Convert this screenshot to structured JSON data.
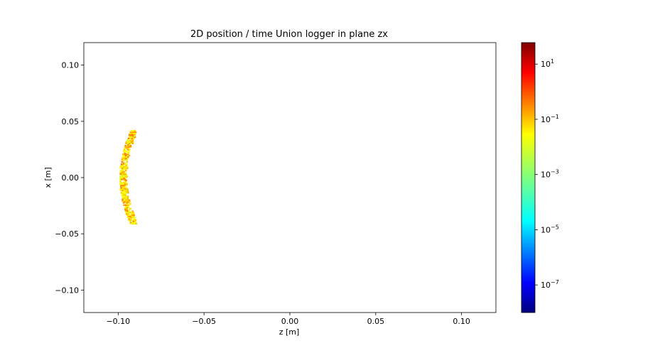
{
  "chart_data": {
    "type": "heatmap",
    "title": "2D position / time Union logger in plane zx",
    "xlabel": "z [m]",
    "ylabel": "x [m]",
    "xlim": [
      -0.12,
      0.12
    ],
    "ylim": [
      -0.12,
      0.12
    ],
    "x_ticks": [
      -0.1,
      -0.05,
      0.0,
      0.05,
      0.1
    ],
    "x_tick_labels": [
      "−0.10",
      "−0.05",
      "0.00",
      "0.05",
      "0.10"
    ],
    "y_ticks": [
      0.1,
      0.05,
      0.0,
      -0.05,
      -0.1
    ],
    "y_tick_labels": [
      "0.10",
      "0.05",
      "0.00",
      "−0.05",
      "−0.10"
    ],
    "grid": false,
    "colormap": "jet",
    "color_scale": "log",
    "colorbar_range": [
      1e-08,
      60
    ],
    "colorbar_ticks": [
      {
        "value": 10,
        "base": "10",
        "exp": "1"
      },
      {
        "value": 0.1,
        "base": "10",
        "exp": "−1"
      },
      {
        "value": 0.001,
        "base": "10",
        "exp": "−3"
      },
      {
        "value": 1e-05,
        "base": "10",
        "exp": "−5"
      },
      {
        "value": 1e-07,
        "base": "10",
        "exp": "−7"
      }
    ],
    "arc": {
      "description_points": [
        {
          "z": -0.0895,
          "x": 0.042
        },
        {
          "z": -0.0925,
          "x": 0.03
        },
        {
          "z": -0.0955,
          "x": 0.015
        },
        {
          "z": -0.0968,
          "x": 0.0
        },
        {
          "z": -0.0955,
          "x": -0.015
        },
        {
          "z": -0.0925,
          "x": -0.03
        },
        {
          "z": -0.09,
          "x": -0.04
        }
      ],
      "value_range": [
        0.01,
        0.5
      ]
    }
  }
}
